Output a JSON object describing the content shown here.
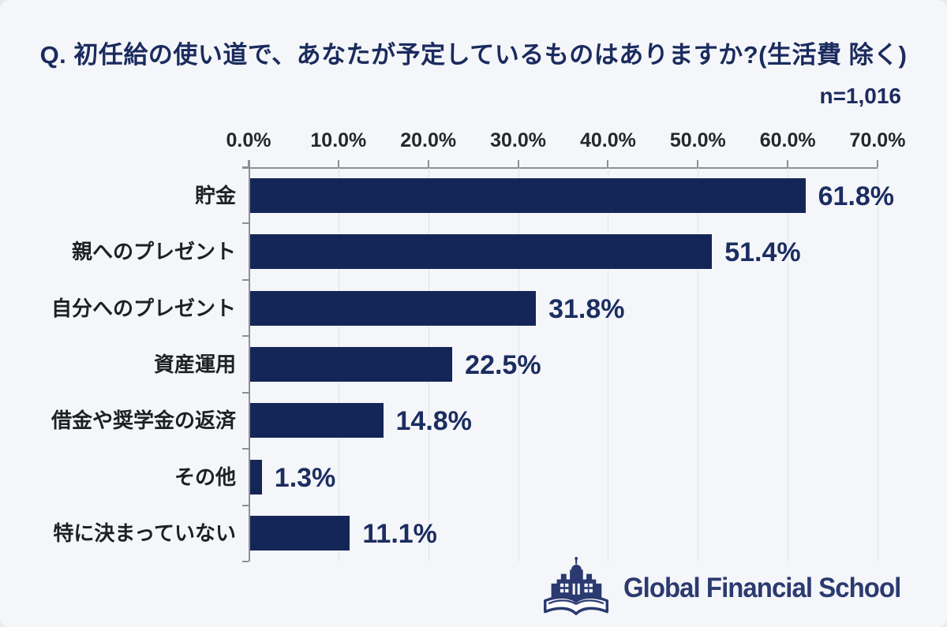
{
  "header": {
    "title": "Q. 初任給の使い道で、あなたが予定しているものはありますか?(生活費 除く)",
    "sample_size": "n=1,016"
  },
  "chart_data": {
    "type": "bar",
    "orientation": "horizontal",
    "title": "Q. 初任給の使い道で、あなたが予定しているものはありますか?(生活費 除く)",
    "sample_size": "n=1,016",
    "categories": [
      "貯金",
      "親へのプレゼント",
      "自分へのプレゼント",
      "資産運用",
      "借金や奨学金の返済",
      "その他",
      "特に決まっていない"
    ],
    "values": [
      61.8,
      51.4,
      31.8,
      22.5,
      14.8,
      1.3,
      11.1
    ],
    "value_labels": [
      "61.8%",
      "51.4%",
      "31.8%",
      "22.5%",
      "14.8%",
      "1.3%",
      "11.1%"
    ],
    "x_tick_labels": [
      "0.0%",
      "10.0%",
      "20.0%",
      "30.0%",
      "40.0%",
      "50.0%",
      "60.0%",
      "70.0%"
    ],
    "xlabel": "",
    "ylabel": "",
    "xlim": [
      0,
      70
    ],
    "grid": true,
    "legend_position": "none",
    "colors": {
      "bar": "#142657",
      "value_label": "#1b2d61",
      "title": "#1a2b5e",
      "background": "#f5f6f9",
      "axis": "#8c8f96",
      "gridline": "#e0e3ea"
    }
  },
  "footer": {
    "logo_icon": "school-building-open-book-icon",
    "logo_text": "Global Financial School"
  }
}
